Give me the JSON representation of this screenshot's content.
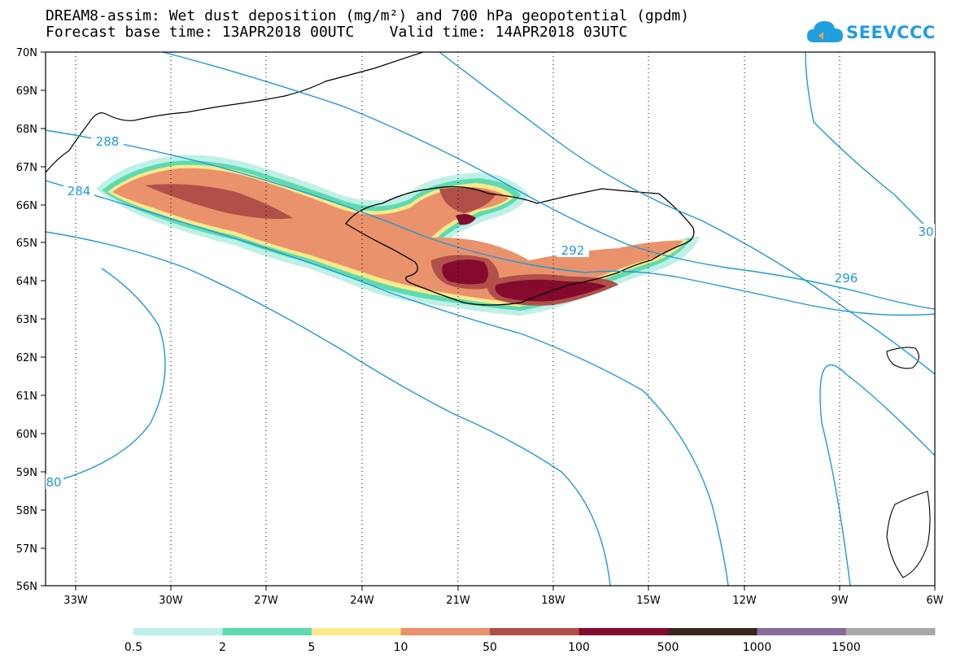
{
  "header": {
    "title_line1": "DREAM8-assim: Wet dust deposition (mg/m²) and 700 hPa geopotential (gpdm)",
    "title_line2": "Forecast base time: 13APR2018 00UTC    Valid time: 14APR2018 03UTC"
  },
  "logo": {
    "text": "SEEVCCC",
    "icon": "cloud-icon"
  },
  "map": {
    "lat_labels": [
      "70N",
      "69N",
      "68N",
      "67N",
      "66N",
      "65N",
      "64N",
      "63N",
      "62N",
      "61N",
      "60N",
      "59N",
      "58N",
      "57N",
      "56N"
    ],
    "lon_labels": [
      "33W",
      "30W",
      "27W",
      "24W",
      "21W",
      "18W",
      "15W",
      "12W",
      "9W",
      "6W"
    ],
    "contour_labels": [
      "288",
      "284",
      "292",
      "296",
      "30",
      "80"
    ],
    "contour_color": "#1e9ad8"
  },
  "legend": {
    "labels": [
      "0.5",
      "2",
      "5",
      "10",
      "50",
      "100",
      "500",
      "1000",
      "1500"
    ],
    "colors": [
      "#bff0e6",
      "#5ddbb0",
      "#f9e98a",
      "#e9926b",
      "#b05048",
      "#840a2e",
      "#3b2419",
      "#8a6b9a",
      "#a8a8a8"
    ]
  }
}
